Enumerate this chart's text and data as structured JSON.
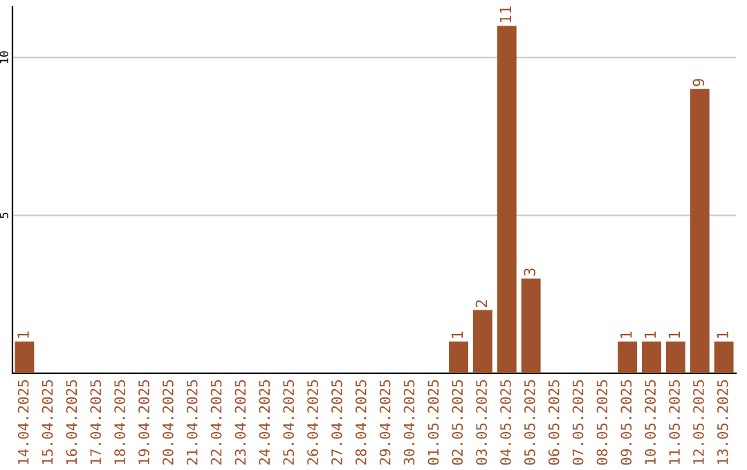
{
  "chart_data": {
    "type": "bar",
    "categories": [
      "14.04.2025",
      "15.04.2025",
      "16.04.2025",
      "17.04.2025",
      "18.04.2025",
      "19.04.2025",
      "20.04.2025",
      "21.04.2025",
      "22.04.2025",
      "23.04.2025",
      "24.04.2025",
      "25.04.2025",
      "26.04.2025",
      "27.04.2025",
      "28.04.2025",
      "29.04.2025",
      "30.04.2025",
      "01.05.2025",
      "02.05.2025",
      "03.05.2025",
      "04.05.2025",
      "05.05.2025",
      "06.05.2025",
      "07.05.2025",
      "08.05.2025",
      "09.05.2025",
      "10.05.2025",
      "11.05.2025",
      "12.05.2025",
      "13.05.2025"
    ],
    "values": [
      1,
      0,
      0,
      0,
      0,
      0,
      0,
      0,
      0,
      0,
      0,
      0,
      0,
      0,
      0,
      0,
      0,
      0,
      1,
      2,
      11,
      3,
      0,
      0,
      0,
      1,
      1,
      1,
      9,
      1
    ],
    "value_labels": [
      "1",
      null,
      null,
      null,
      null,
      null,
      null,
      null,
      null,
      null,
      null,
      null,
      null,
      null,
      null,
      null,
      null,
      null,
      "1",
      "2",
      "11",
      "3",
      null,
      null,
      null,
      "1",
      "1",
      "1",
      "9",
      "1"
    ],
    "color": "#a0522d",
    "ylim": [
      0,
      11.6
    ],
    "yticks": [
      5,
      10
    ],
    "grid": "y"
  }
}
